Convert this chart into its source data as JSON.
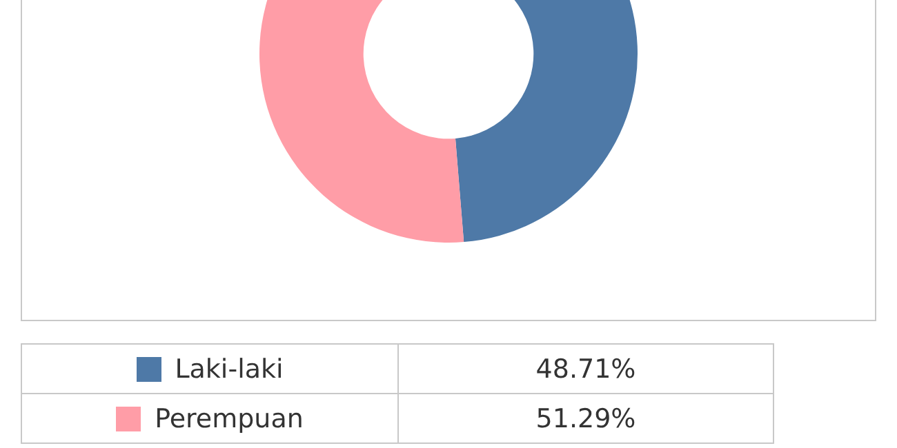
{
  "chart_data": {
    "type": "donut",
    "categories": [
      "Laki-laki",
      "Perempuan"
    ],
    "values": [
      48.71,
      51.29
    ],
    "colors": [
      "#4e79a7",
      "#ff9da7"
    ],
    "value_labels": [
      "48.71%",
      "51.29%"
    ],
    "legend": "bottom"
  }
}
